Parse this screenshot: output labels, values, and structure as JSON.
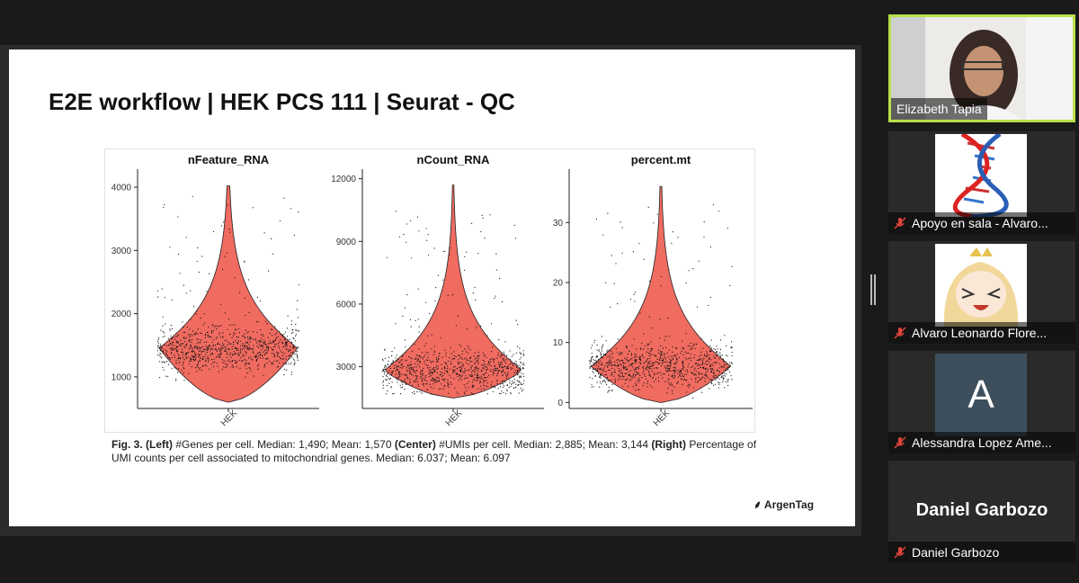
{
  "slide": {
    "title": "E2E workflow | HEK PCS 111 | Seurat - QC",
    "brand": "ArgenTag",
    "caption": {
      "fig": "Fig. 3.",
      "left": "(Left)",
      "left_text": " #Genes per cell. Median: 1,490; Mean: 1,570 ",
      "center": "(Center)",
      "center_text": " #UMIs per cell. Median: 2,885; Mean: 3,144 ",
      "right": "(Right)",
      "right_text": " Percentage of UMI counts per cell associated to mitochondrial genes. Median: 6.037; Mean: 6.097"
    }
  },
  "chart_data": [
    {
      "type": "violin",
      "title": "nFeature_RNA",
      "categories": [
        "HEK"
      ],
      "ylim": [
        500,
        4200
      ],
      "yticks": [
        "1000",
        "2000",
        "3000",
        "4000"
      ],
      "stats": {
        "min": 600,
        "median": 1490,
        "mode": 1450,
        "max": 4020
      },
      "color": "#f06b60"
    },
    {
      "type": "violin",
      "title": "nCount_RNA",
      "categories": [
        "HEK"
      ],
      "ylim": [
        1000,
        12200
      ],
      "yticks": [
        "3000",
        "6000",
        "9000",
        "12000"
      ],
      "stats": {
        "min": 1500,
        "median": 2885,
        "mode": 2800,
        "max": 11700
      },
      "color": "#f06b60"
    },
    {
      "type": "violin",
      "title": "percent.mt",
      "categories": [
        "HEK"
      ],
      "ylim": [
        -1,
        38
      ],
      "yticks": [
        "0",
        "10",
        "20",
        "30"
      ],
      "stats": {
        "min": 0,
        "median": 6.037,
        "mode": 6,
        "max": 36
      },
      "color": "#f06b60"
    }
  ],
  "participants": [
    {
      "name": "Elizabeth Tapia",
      "muted": false,
      "active_speaker": true,
      "avatar": "person-photo"
    },
    {
      "name": "Apoyo en sala - Alvaro...",
      "muted": true,
      "avatar": "dna-helix-image"
    },
    {
      "name": "Alvaro Leonardo Flore...",
      "muted": true,
      "avatar": "anime-avatar-image"
    },
    {
      "name": "Alessandra Lopez Ame...",
      "muted": true,
      "avatar": "letter-avatar",
      "initial": "A",
      "avatar_color": "#3d4f5c"
    },
    {
      "name": "Daniel Garbozo",
      "muted": true,
      "avatar": "name-only"
    }
  ],
  "colors": {
    "active_border": "#b8e04a",
    "muted_icon": "#e0443a",
    "violin": "#f06b60"
  }
}
